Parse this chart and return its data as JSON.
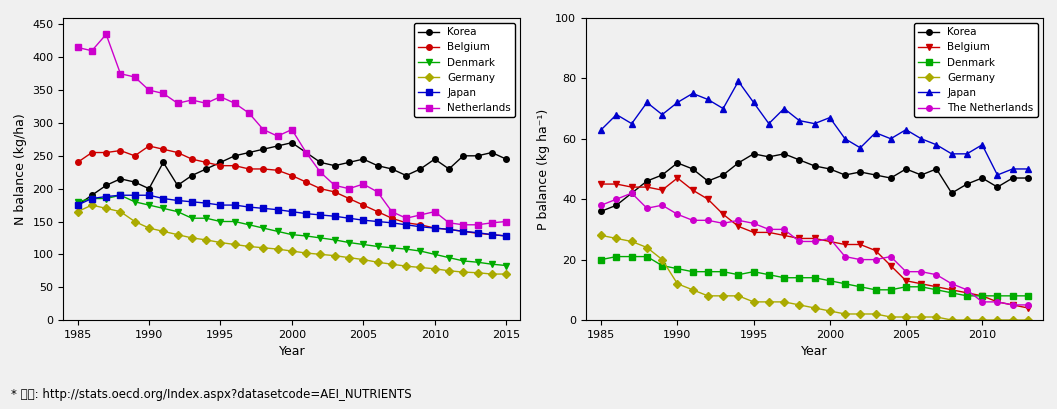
{
  "years_N": [
    1985,
    1986,
    1987,
    1988,
    1989,
    1990,
    1991,
    1992,
    1993,
    1994,
    1995,
    1996,
    1997,
    1998,
    1999,
    2000,
    2001,
    2002,
    2003,
    2004,
    2005,
    2006,
    2007,
    2008,
    2009,
    2010,
    2011,
    2012,
    2013,
    2014,
    2015
  ],
  "N_Korea": [
    175,
    190,
    205,
    215,
    210,
    200,
    240,
    205,
    220,
    230,
    240,
    250,
    255,
    260,
    265,
    270,
    255,
    240,
    235,
    240,
    245,
    235,
    230,
    220,
    230,
    245,
    230,
    250,
    250,
    255,
    245
  ],
  "N_Belgium": [
    240,
    255,
    255,
    258,
    250,
    265,
    260,
    255,
    245,
    240,
    235,
    235,
    230,
    230,
    228,
    220,
    210,
    200,
    195,
    185,
    175,
    165,
    155,
    148,
    145,
    140,
    138,
    135,
    132,
    130,
    128
  ],
  "N_Denmark": [
    180,
    185,
    185,
    190,
    180,
    175,
    170,
    165,
    155,
    155,
    150,
    150,
    145,
    140,
    135,
    130,
    128,
    125,
    122,
    118,
    115,
    112,
    110,
    108,
    105,
    100,
    95,
    90,
    88,
    85,
    83
  ],
  "N_Germany": [
    165,
    175,
    170,
    165,
    150,
    140,
    135,
    130,
    125,
    122,
    118,
    115,
    112,
    110,
    108,
    105,
    102,
    100,
    98,
    95,
    92,
    88,
    85,
    82,
    80,
    78,
    75,
    73,
    72,
    70,
    70
  ],
  "N_Japan": [
    175,
    185,
    188,
    190,
    190,
    190,
    185,
    182,
    180,
    178,
    175,
    175,
    172,
    170,
    168,
    165,
    162,
    160,
    158,
    155,
    152,
    150,
    148,
    145,
    142,
    140,
    138,
    135,
    133,
    130,
    128
  ],
  "N_Netherlands": [
    415,
    410,
    435,
    375,
    370,
    350,
    345,
    330,
    335,
    330,
    340,
    330,
    315,
    290,
    280,
    290,
    255,
    225,
    205,
    200,
    207,
    195,
    165,
    155,
    160,
    165,
    148,
    145,
    145,
    148,
    150
  ],
  "years_P": [
    1985,
    1986,
    1987,
    1988,
    1989,
    1990,
    1991,
    1992,
    1993,
    1994,
    1995,
    1996,
    1997,
    1998,
    1999,
    2000,
    2001,
    2002,
    2003,
    2004,
    2005,
    2006,
    2007,
    2008,
    2009,
    2010,
    2011,
    2012,
    2013
  ],
  "P_Korea": [
    36,
    38,
    42,
    46,
    48,
    52,
    50,
    46,
    48,
    52,
    55,
    54,
    55,
    53,
    51,
    50,
    48,
    49,
    48,
    47,
    50,
    48,
    50,
    42,
    45,
    47,
    44,
    47,
    47
  ],
  "P_Belgium": [
    45,
    45,
    44,
    44,
    43,
    47,
    43,
    40,
    35,
    31,
    29,
    29,
    28,
    27,
    27,
    26,
    25,
    25,
    23,
    18,
    13,
    12,
    11,
    10,
    9,
    8,
    6,
    5,
    4
  ],
  "P_Denmark": [
    20,
    21,
    21,
    21,
    18,
    17,
    16,
    16,
    16,
    15,
    16,
    15,
    14,
    14,
    14,
    13,
    12,
    11,
    10,
    10,
    11,
    11,
    10,
    9,
    8,
    8,
    8,
    8,
    8
  ],
  "P_Germany": [
    28,
    27,
    26,
    24,
    20,
    12,
    10,
    8,
    8,
    8,
    6,
    6,
    6,
    5,
    4,
    3,
    2,
    2,
    2,
    1,
    1,
    1,
    1,
    0,
    0,
    0,
    0,
    0,
    0
  ],
  "P_Japan": [
    63,
    68,
    65,
    72,
    68,
    72,
    75,
    73,
    70,
    79,
    72,
    65,
    70,
    66,
    65,
    67,
    60,
    57,
    62,
    60,
    63,
    60,
    58,
    55,
    55,
    58,
    48,
    50,
    50
  ],
  "P_Netherlands": [
    38,
    40,
    42,
    37,
    38,
    35,
    33,
    33,
    32,
    33,
    32,
    30,
    30,
    26,
    26,
    27,
    21,
    20,
    20,
    21,
    16,
    16,
    15,
    12,
    10,
    6,
    6,
    5,
    5
  ],
  "colors": {
    "Korea": "#000000",
    "Belgium": "#cc0000",
    "Denmark": "#00aa00",
    "Germany": "#aaaa00",
    "Japan": "#0000cc",
    "Netherlands": "#cc00cc"
  },
  "markers_N": {
    "Korea": "o",
    "Belgium": "o",
    "Denmark": "v",
    "Germany": "D",
    "Japan": "s",
    "Netherlands": "s"
  },
  "markers_P": {
    "Korea": "o",
    "Belgium": "v",
    "Denmark": "s",
    "Germany": "D",
    "Japan": "^",
    "Netherlands": "o"
  },
  "N_ylabel": "N balance (kg/ha)",
  "P_ylabel": "P balance (kg ha⁻¹)",
  "xlabel": "Year",
  "N_ylim": [
    0,
    460
  ],
  "P_ylim": [
    0,
    100
  ],
  "N_yticks": [
    0,
    50,
    100,
    150,
    200,
    250,
    300,
    350,
    400,
    450
  ],
  "P_yticks": [
    0,
    20,
    40,
    60,
    80,
    100
  ],
  "fig_bg": "#f0f0f0",
  "ax_bg": "#f0f0f0",
  "source_text_latin": "* 출처: http://stats.oecd.org/Index.aspx?datasetcode=AEI_NUTRIENTS",
  "source_text": "* 출처: http://stats.oecd.org/Index.aspx?datasetcode=AEI_NUTRIENTS"
}
